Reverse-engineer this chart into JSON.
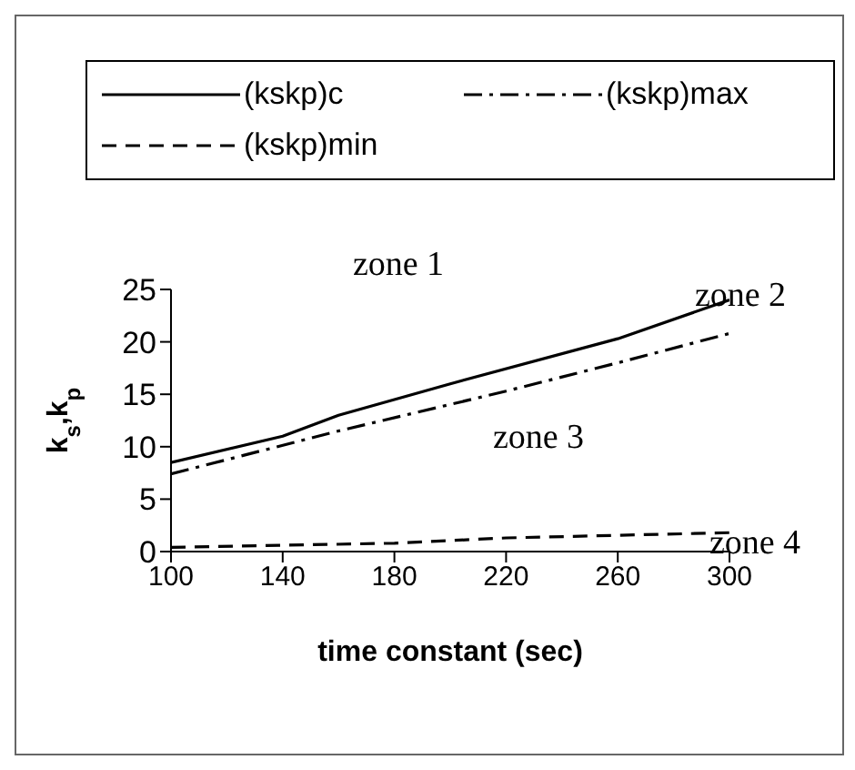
{
  "chart_data": {
    "type": "line",
    "xlabel": "time constant (sec)",
    "ylabel": "k$_{s}$,k$_{p}$",
    "series": [
      {
        "name": "(kskp)c",
        "color": "#000000",
        "line_style": "solid",
        "x": [
          100,
          140,
          160,
          200,
          260,
          300
        ],
        "values": [
          8.5,
          11,
          13,
          16,
          20.3,
          24
        ]
      },
      {
        "name": "(kskp)max",
        "color": "#000000",
        "line_style": "dashdot",
        "x": [
          100,
          160,
          220,
          260,
          300
        ],
        "values": [
          7.4,
          11.5,
          15.3,
          18,
          20.8
        ]
      },
      {
        "name": "(kskp)min",
        "color": "#000000",
        "line_style": "dashed",
        "x": [
          100,
          180,
          220,
          300
        ],
        "values": [
          0.4,
          0.8,
          1.3,
          1.8
        ]
      }
    ],
    "annotations": [
      "zone 1",
      "zone 2",
      "zone 3",
      "zone 4"
    ],
    "xlim": [
      100,
      300
    ],
    "xticks": [
      100,
      140,
      180,
      220,
      260,
      300
    ],
    "ylim": [
      0,
      25
    ],
    "yticks": [
      0,
      5,
      10,
      15,
      20,
      25
    ],
    "grid": false,
    "legend": "top",
    "marker": "none"
  }
}
